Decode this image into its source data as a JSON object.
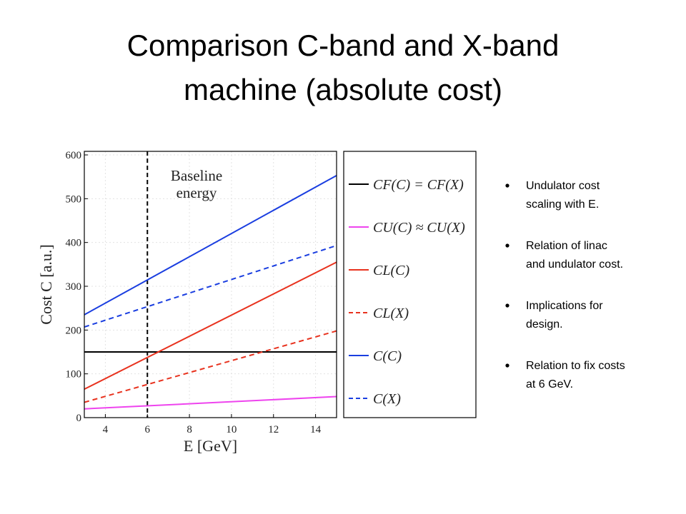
{
  "title": [
    "Comparison C-band and X-band",
    "machine (absolute cost)"
  ],
  "bullets": [
    [
      "Undulator cost",
      "scaling with E."
    ],
    [
      "Relation of linac",
      "and undulator cost."
    ],
    [
      "Implications for",
      "design."
    ],
    [
      "Relation to fix costs",
      "at 6 GeV."
    ]
  ],
  "chart_data": {
    "type": "line",
    "x_label": "E [GeV]",
    "y_label": "Cost C [a.u.]",
    "x": [
      3,
      15
    ],
    "series": [
      {
        "name": "CF(C) = CF(X)",
        "color": "#000000",
        "dashed": false,
        "values": [
          150,
          150
        ]
      },
      {
        "name": "CU(C) ≈ CU(X)",
        "color": "#ee44ee",
        "dashed": false,
        "values": [
          20,
          48
        ]
      },
      {
        "name": "CL(C)",
        "color": "#e8321e",
        "dashed": false,
        "values": [
          65,
          355
        ]
      },
      {
        "name": "CL(X)",
        "color": "#e8321e",
        "dashed": true,
        "values": [
          35,
          198
        ]
      },
      {
        "name": "C(C)",
        "color": "#1a3ee0",
        "dashed": false,
        "values": [
          235,
          553
        ]
      },
      {
        "name": "C(X)",
        "color": "#1a3ee0",
        "dashed": true,
        "values": [
          207,
          393
        ]
      }
    ],
    "vline": 6,
    "annotation": [
      "Baseline",
      "energy"
    ],
    "xlim": [
      3,
      15
    ],
    "xticks": [
      4,
      6,
      8,
      10,
      12,
      14
    ],
    "ylim": [
      0,
      600
    ],
    "yticks": [
      0,
      100,
      200,
      300,
      400,
      500,
      600
    ],
    "grid": true
  }
}
